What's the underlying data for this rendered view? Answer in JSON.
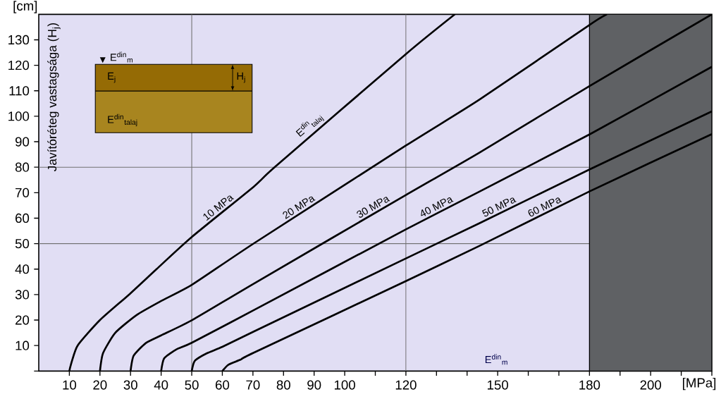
{
  "chart_data": {
    "type": "line",
    "xlabel": "E$^{din}$$_{m}$",
    "ylabel": "Javítóréteg vastagsága (H$_{j}$)",
    "xlim": [
      0,
      220
    ],
    "ylim": [
      0,
      140
    ],
    "xticks": [
      10,
      20,
      30,
      40,
      50,
      60,
      70,
      80,
      90,
      100,
      {
        "value": 110,
        "label": null
      },
      120,
      {
        "value": 130,
        "label": null
      },
      {
        "value": 140,
        "label": null
      },
      150,
      {
        "value": 160,
        "label": null
      },
      {
        "value": 170,
        "label": null
      },
      180,
      {
        "value": 190,
        "label": null
      },
      200,
      {
        "value": 210,
        "label": null
      },
      {
        "value": 220,
        "label": null
      }
    ],
    "yticks": [
      {
        "value": 0,
        "label": null
      },
      10,
      20,
      30,
      40,
      50,
      60,
      70,
      80,
      90,
      100,
      110,
      120,
      130
    ],
    "series": [
      {
        "name": "10 MPa",
        "color": "#000000",
        "x": [
          10,
          10.5,
          12.7,
          20,
          29.5,
          38.5,
          50,
          70.3,
          77.4,
          120,
          136
        ],
        "values": [
          0,
          2.5,
          10,
          20,
          30,
          40,
          52.6,
          72.4,
          80.3,
          124.4,
          140
        ]
      },
      {
        "name": "20 MPa",
        "color": "#000000",
        "x": [
          20,
          21,
          25,
          32,
          40,
          50,
          70.3,
          120,
          144,
          180.2,
          185.7
        ],
        "values": [
          0,
          7,
          15,
          22,
          27.5,
          33.8,
          50.1,
          88.5,
          106.5,
          136,
          140
        ]
      },
      {
        "name": "30 MPa",
        "color": "#000000",
        "x": [
          30,
          31,
          35,
          40,
          50,
          70.3,
          120,
          144,
          180.2,
          220
        ],
        "values": [
          0,
          6,
          11,
          14,
          19.9,
          34.3,
          69.1,
          85.7,
          112,
          140
        ]
      },
      {
        "name": "40 MPa",
        "color": "#000000",
        "x": [
          40,
          41,
          45,
          50,
          70.3,
          120,
          144,
          180.2,
          220
        ],
        "values": [
          0,
          5,
          8.5,
          11.1,
          23.9,
          55.6,
          70.4,
          93,
          119.4
        ]
      },
      {
        "name": "50 MPa",
        "color": "#000000",
        "x": [
          50,
          51,
          55,
          60,
          70.3,
          120,
          144,
          180.2,
          220
        ],
        "values": [
          0,
          4,
          7,
          9.5,
          15.5,
          44.2,
          58,
          79.2,
          101.9
        ]
      },
      {
        "name": "60 MPa",
        "color": "#000000",
        "x": [
          60,
          62,
          66,
          70.3,
          120,
          144,
          180.2,
          220
        ],
        "values": [
          0,
          2.5,
          4.5,
          7.2,
          35.3,
          49.1,
          70.6,
          93
        ]
      }
    ],
    "ref_lines": [
      {
        "axis": "x",
        "value": 50,
        "color": "#707070"
      },
      {
        "axis": "x",
        "value": 120,
        "color": "#707070"
      },
      {
        "axis": "y",
        "value": 50,
        "color": "#707070"
      },
      {
        "axis": "y",
        "value": 80,
        "color": "#707070"
      }
    ],
    "bands": [
      {
        "axis": "x",
        "from": 180,
        "to": 220,
        "color": "#5f6164"
      }
    ],
    "annotations": [
      "[cm]",
      "[MPa]",
      "E$^{din}$$_{talaj}$",
      "E$^{din}$$_{m}$",
      "E$_{j}$",
      "H$_{j}$",
      "E$^{din}$$_{talaj}$"
    ]
  }
}
